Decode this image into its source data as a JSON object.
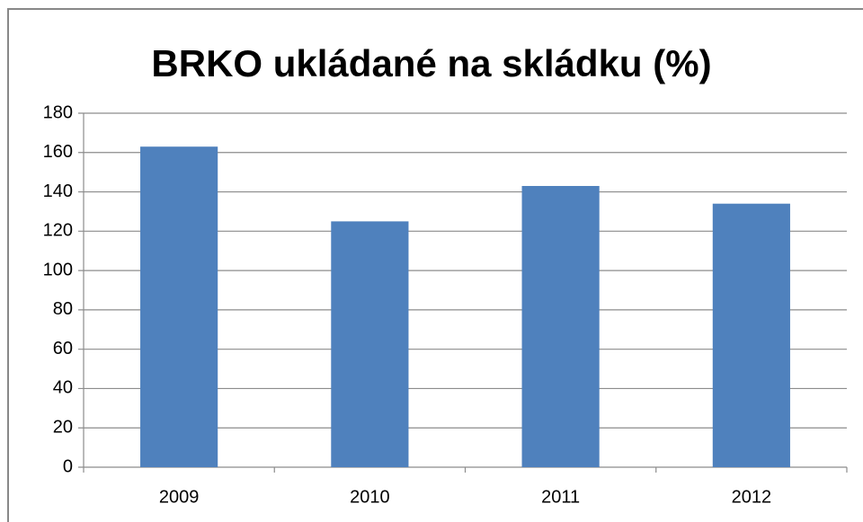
{
  "chart_data": {
    "type": "bar",
    "title": "BRKO ukládané na skládku (%)",
    "categories": [
      "2009",
      "2010",
      "2011",
      "2012"
    ],
    "values": [
      163,
      125,
      143,
      134
    ],
    "color": "#4f81bd",
    "ylim": [
      0,
      180
    ],
    "yticks": [
      0,
      20,
      40,
      60,
      80,
      100,
      120,
      140,
      160,
      180
    ],
    "grid": true
  }
}
